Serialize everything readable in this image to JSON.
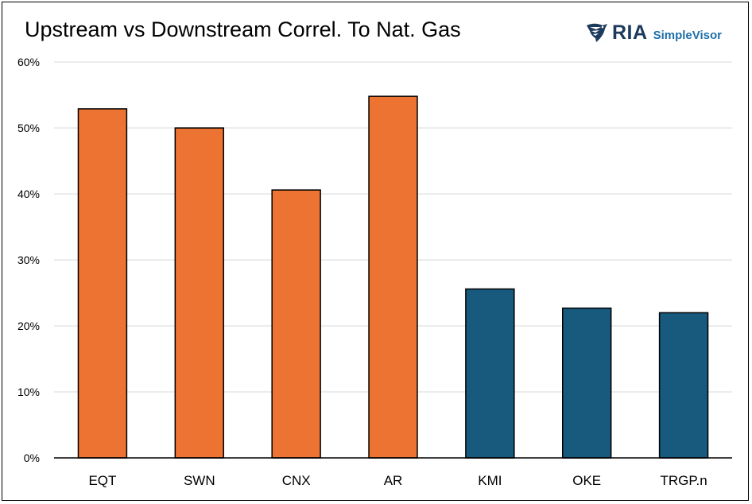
{
  "title": "Upstream vs Downstream Correl. To Nat. Gas",
  "logo": {
    "brand": "RIA",
    "product": "SimpleVisor",
    "mark_icon": "eagle-icon",
    "brand_color": "#1b3a5c",
    "product_color": "#1f6fa8"
  },
  "chart_data": {
    "type": "bar",
    "title": "Upstream vs Downstream Correl. To Nat. Gas",
    "xlabel": "",
    "ylabel": "",
    "categories": [
      "EQT",
      "SWN",
      "CNX",
      "AR",
      "KMI",
      "OKE",
      "TRGP.n"
    ],
    "values": [
      52.9,
      50.0,
      40.6,
      54.8,
      25.6,
      22.7,
      22.0
    ],
    "bar_colors": [
      "#ed7333",
      "#ed7333",
      "#ed7333",
      "#ed7333",
      "#175a7e",
      "#175a7e",
      "#175a7e"
    ],
    "ylim": [
      0,
      60
    ],
    "yticks": [
      0,
      10,
      20,
      30,
      40,
      50,
      60
    ],
    "ytick_labels": [
      "0%",
      "10%",
      "20%",
      "30%",
      "40%",
      "50%",
      "60%"
    ],
    "grid": true,
    "legend": "none"
  }
}
